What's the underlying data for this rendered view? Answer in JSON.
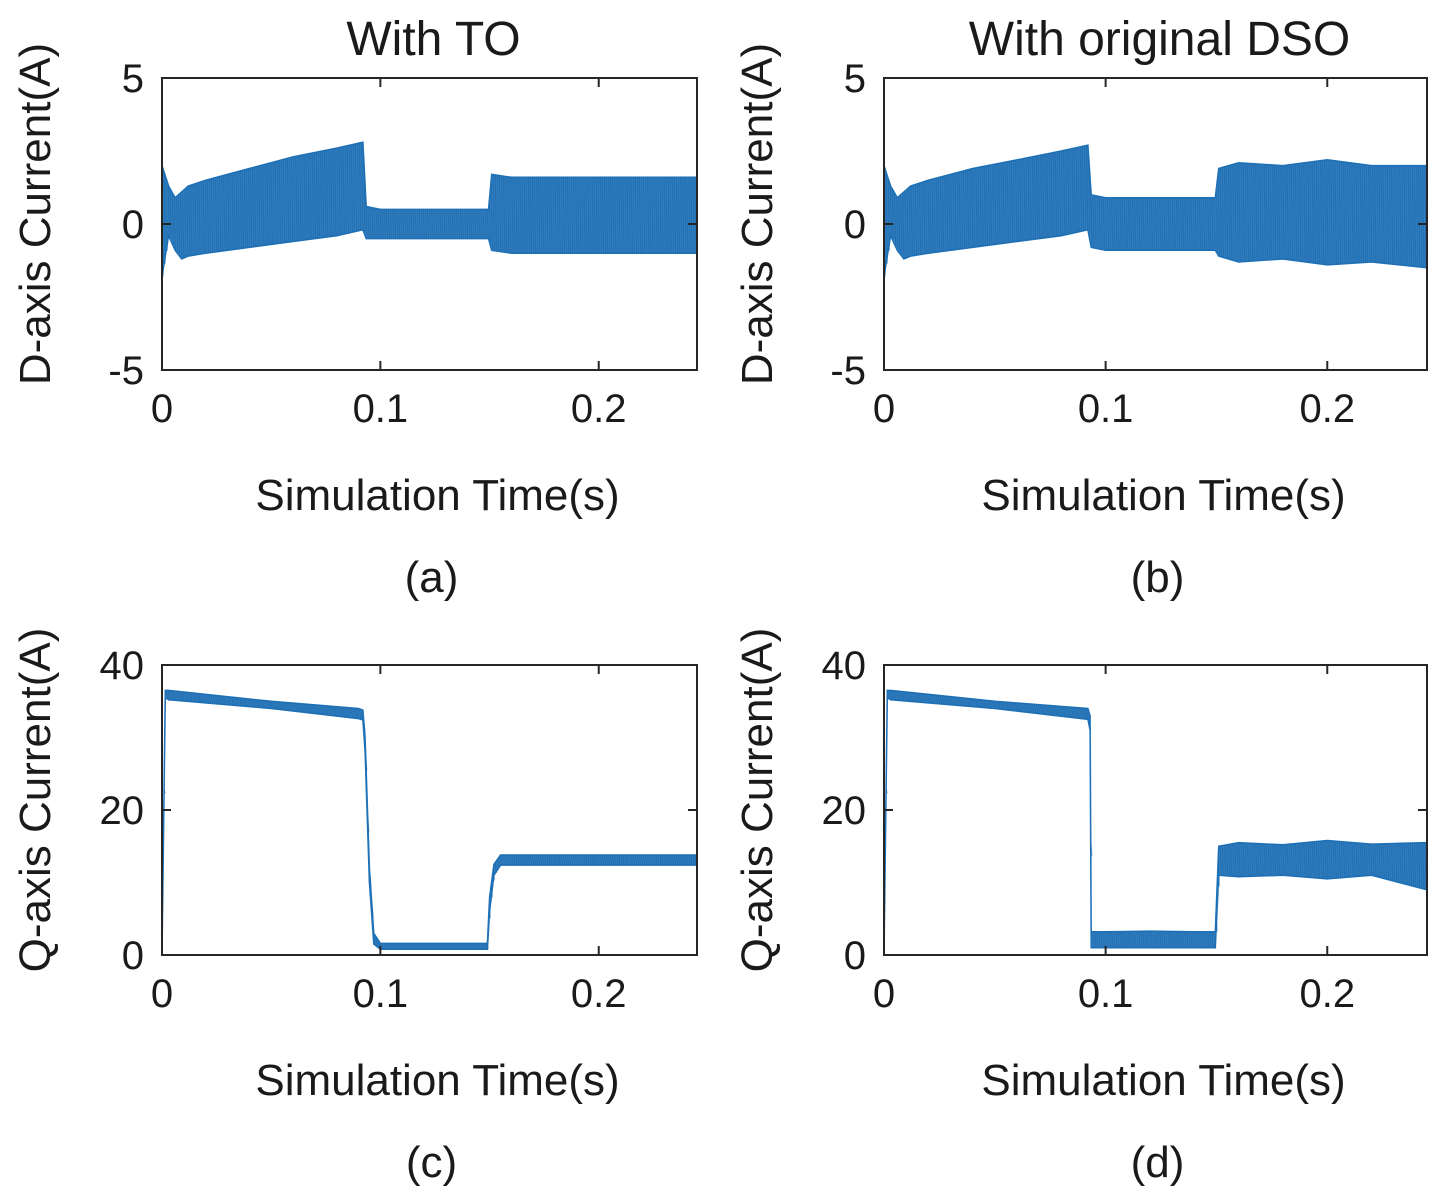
{
  "chart_data": [
    {
      "type": "line",
      "id": "a",
      "title": "With TO",
      "caption": "(a)",
      "xlabel": "Simulation Time(s)",
      "ylabel": "D-axis Current(A)",
      "xlim": [
        0,
        0.245
      ],
      "ylim": [
        -5,
        5
      ],
      "xticks": [
        0,
        0.1,
        0.2
      ],
      "xtick_labels": [
        "0",
        "0.1",
        "0.2"
      ],
      "yticks": [
        -5,
        0,
        5
      ],
      "ytick_labels": [
        "-5",
        "0",
        "5"
      ],
      "color": "#1f72b8",
      "band_series": {
        "x": [
          0,
          0.003,
          0.006,
          0.009,
          0.012,
          0.02,
          0.04,
          0.06,
          0.08,
          0.092,
          0.0935,
          0.1,
          0.12,
          0.14,
          0.1495,
          0.151,
          0.16,
          0.18,
          0.2,
          0.22,
          0.245
        ],
        "upper": [
          2.0,
          1.3,
          0.9,
          1.1,
          1.3,
          1.5,
          1.9,
          2.3,
          2.6,
          2.8,
          0.6,
          0.5,
          0.5,
          0.5,
          0.5,
          1.7,
          1.6,
          1.6,
          1.6,
          1.6,
          1.6
        ],
        "lower": [
          -1.8,
          -0.4,
          -0.9,
          -1.2,
          -1.1,
          -1.0,
          -0.8,
          -0.6,
          -0.4,
          -0.2,
          -0.5,
          -0.5,
          -0.5,
          -0.5,
          -0.5,
          -0.9,
          -1.0,
          -1.0,
          -1.0,
          -1.0,
          -1.0
        ]
      }
    },
    {
      "type": "line",
      "id": "b",
      "title": "With original DSO",
      "caption": "(b)",
      "xlabel": "Simulation Time(s)",
      "ylabel": "D-axis Current(A)",
      "xlim": [
        0,
        0.245
      ],
      "ylim": [
        -5,
        5
      ],
      "xticks": [
        0,
        0.1,
        0.2
      ],
      "xtick_labels": [
        "0",
        "0.1",
        "0.2"
      ],
      "yticks": [
        -5,
        0,
        5
      ],
      "ytick_labels": [
        "-5",
        "0",
        "5"
      ],
      "color": "#1f72b8",
      "band_series": {
        "x": [
          0,
          0.003,
          0.006,
          0.009,
          0.012,
          0.02,
          0.04,
          0.06,
          0.08,
          0.092,
          0.0935,
          0.1,
          0.12,
          0.14,
          0.1495,
          0.151,
          0.16,
          0.18,
          0.2,
          0.22,
          0.245
        ],
        "upper": [
          2.0,
          1.3,
          0.9,
          1.1,
          1.3,
          1.5,
          1.9,
          2.2,
          2.5,
          2.7,
          1.0,
          0.9,
          0.9,
          0.9,
          0.9,
          1.9,
          2.1,
          2.0,
          2.2,
          2.0,
          2.0
        ],
        "lower": [
          -1.8,
          -0.4,
          -0.9,
          -1.2,
          -1.1,
          -1.0,
          -0.8,
          -0.6,
          -0.4,
          -0.2,
          -0.8,
          -0.9,
          -0.9,
          -0.9,
          -0.9,
          -1.1,
          -1.3,
          -1.2,
          -1.4,
          -1.3,
          -1.5
        ]
      }
    },
    {
      "type": "line",
      "id": "c",
      "caption": "(c)",
      "xlabel": "Simulation Time(s)",
      "ylabel": "Q-axis Current(A)",
      "xlim": [
        0,
        0.245
      ],
      "ylim": [
        0,
        40
      ],
      "xticks": [
        0,
        0.1,
        0.2
      ],
      "xtick_labels": [
        "0",
        "0.1",
        "0.2"
      ],
      "yticks": [
        0,
        20,
        40
      ],
      "ytick_labels": [
        "0",
        "20",
        "40"
      ],
      "color": "#1f72b8",
      "band_series": {
        "x": [
          0,
          0.0015,
          0.003,
          0.05,
          0.09,
          0.092,
          0.093,
          0.095,
          0.097,
          0.1,
          0.12,
          0.14,
          0.149,
          0.15,
          0.152,
          0.155,
          0.2,
          0.245
        ],
        "upper": [
          0,
          36.5,
          36.5,
          35.0,
          34.0,
          33.8,
          30.0,
          12.0,
          3.0,
          1.6,
          1.6,
          1.6,
          1.6,
          8.0,
          12.5,
          13.8,
          13.8,
          13.8
        ],
        "lower": [
          0,
          35.5,
          35.2,
          34.0,
          32.6,
          32.4,
          28.0,
          10.0,
          1.5,
          0.8,
          0.8,
          0.8,
          0.8,
          6.0,
          11.0,
          12.4,
          12.4,
          12.4
        ]
      }
    },
    {
      "type": "line",
      "id": "d",
      "caption": "(d)",
      "xlabel": "Simulation Time(s)",
      "ylabel": "Q-axis Current(A)",
      "xlim": [
        0,
        0.245
      ],
      "ylim": [
        0,
        40
      ],
      "xticks": [
        0,
        0.1,
        0.2
      ],
      "xtick_labels": [
        "0",
        "0.1",
        "0.2"
      ],
      "yticks": [
        0,
        20,
        40
      ],
      "ytick_labels": [
        "0",
        "20",
        "40"
      ],
      "color": "#1f72b8",
      "band_series": {
        "x": [
          0,
          0.0015,
          0.003,
          0.05,
          0.092,
          0.093,
          0.0935,
          0.1,
          0.12,
          0.14,
          0.1495,
          0.151,
          0.16,
          0.18,
          0.2,
          0.22,
          0.245
        ],
        "upper": [
          0,
          36.5,
          36.5,
          35.0,
          34.0,
          33.0,
          3.2,
          3.2,
          3.3,
          3.2,
          3.2,
          15.0,
          15.5,
          15.2,
          15.8,
          15.3,
          15.5
        ],
        "lower": [
          0,
          35.5,
          35.2,
          34.0,
          32.5,
          31.0,
          1.0,
          1.0,
          1.0,
          1.0,
          1.0,
          11.0,
          10.8,
          11.0,
          10.5,
          11.0,
          9.0
        ]
      }
    }
  ]
}
